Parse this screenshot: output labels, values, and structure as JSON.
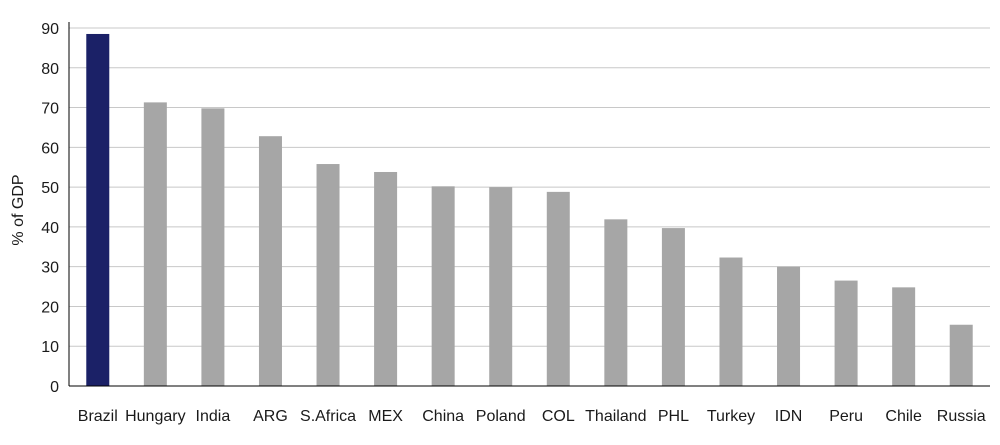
{
  "chart_data": {
    "type": "bar",
    "title": "",
    "xlabel": "",
    "ylabel": "% of GDP",
    "ylim": [
      0,
      90
    ],
    "yticks": [
      0,
      10,
      20,
      30,
      40,
      50,
      60,
      70,
      80,
      90
    ],
    "grid": true,
    "legend": "none",
    "categories": [
      "Brazil",
      "Hungary",
      "India",
      "ARG",
      "S.Africa",
      "MEX",
      "China",
      "Poland",
      "COL",
      "Thailand",
      "PHL",
      "Turkey",
      "IDN",
      "Peru",
      "Chile",
      "Russia"
    ],
    "values": [
      88.5,
      71.3,
      69.8,
      62.8,
      55.8,
      53.8,
      50.2,
      50.0,
      48.8,
      41.9,
      39.7,
      32.3,
      30.0,
      26.5,
      24.8,
      15.4
    ],
    "colors": {
      "highlight": "#1b2167",
      "default": "#a6a6a6",
      "grid": "#c8c8c8",
      "axis": "#000000"
    },
    "highlight_category": "Brazil"
  }
}
